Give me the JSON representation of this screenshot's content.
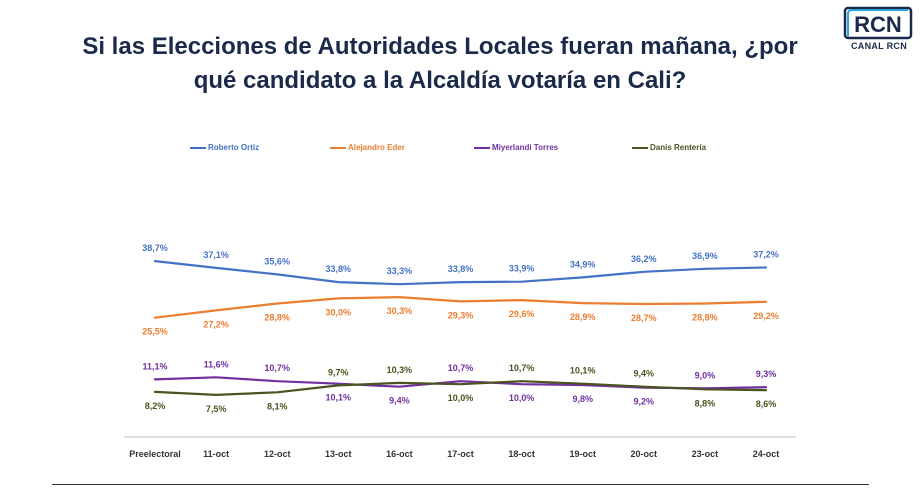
{
  "header": {
    "title_line1": "Si las Elecciones de Autoridades Locales fueran mañana, ¿por",
    "title_line2": "qué candidato a la Alcaldía votaría en Cali?"
  },
  "logo": {
    "text": "CANAL RCN",
    "letters": "RCN"
  },
  "colors": {
    "title": "#1b2a4a",
    "roberto": "#4472c4",
    "alejandro": "#ed7d31",
    "miyerlandi": "#7030a0",
    "danis": "#4b5320",
    "axis": "#bfbfbf"
  },
  "chart_data": {
    "type": "line",
    "title": "Si las Elecciones de Autoridades Locales fueran mañana, ¿por qué candidato a la Alcaldía votaría en Cali?",
    "categories": [
      "Preelectoral",
      "11-oct",
      "12-oct",
      "13-oct",
      "16-oct",
      "17-oct",
      "18-oct",
      "19-oct",
      "20-oct",
      "23-oct",
      "24-oct"
    ],
    "legend_position": "top",
    "ylim": [
      5,
      40
    ],
    "series": [
      {
        "name": "Roberto Ortiz",
        "color": "#4472c4",
        "label_pos": "above",
        "values": [
          38.7,
          37.1,
          35.6,
          33.8,
          33.3,
          33.8,
          33.9,
          34.9,
          36.2,
          36.9,
          37.2
        ],
        "labels": [
          "38,7%",
          "37,1%",
          "35,6%",
          "33,8%",
          "33,3%",
          "33,8%",
          "33,9%",
          "34,9%",
          "36,2%",
          "36,9%",
          "37,2%"
        ]
      },
      {
        "name": "Alejandro Eder",
        "color": "#ed7d31",
        "label_pos": "below",
        "values": [
          25.5,
          27.2,
          28.8,
          30.0,
          30.3,
          29.3,
          29.6,
          28.9,
          28.7,
          28.8,
          29.2
        ],
        "labels": [
          "25,5%",
          "27,2%",
          "28,8%",
          "30,0%",
          "30,3%",
          "29,3%",
          "29,6%",
          "28,9%",
          "28,7%",
          "28,8%",
          "29,2%"
        ]
      },
      {
        "name": "Miyerlandi Torres",
        "color": "#7030a0",
        "label_pos": [
          "above",
          "above",
          "above",
          "below",
          "below",
          "above",
          "below",
          "below",
          "below",
          "above",
          "above"
        ],
        "values": [
          11.1,
          11.6,
          10.7,
          10.1,
          9.4,
          10.7,
          10.0,
          9.8,
          9.2,
          9.0,
          9.3
        ],
        "labels": [
          "11,1%",
          "11,6%",
          "10,7%",
          "10,1%",
          "9,4%",
          "10,7%",
          "10,0%",
          "9,8%",
          "9,2%",
          "9,0%",
          "9,3%"
        ]
      },
      {
        "name": "Danis Rentería",
        "color": "#4b5320",
        "label_pos": [
          "below",
          "below",
          "below",
          "above",
          "above",
          "below",
          "above",
          "above",
          "above",
          "below",
          "below"
        ],
        "values": [
          8.2,
          7.5,
          8.1,
          9.7,
          10.3,
          10.0,
          10.7,
          10.1,
          9.4,
          8.8,
          8.6
        ],
        "labels": [
          "8,2%",
          "7,5%",
          "8,1%",
          "9,7%",
          "10,3%",
          "10,0%",
          "10,7%",
          "10,1%",
          "9,4%",
          "8,8%",
          "8,6%"
        ]
      }
    ]
  }
}
